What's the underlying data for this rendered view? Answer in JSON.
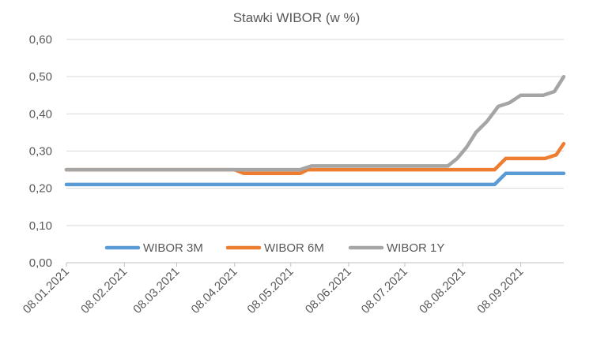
{
  "chart_data": {
    "type": "line",
    "title": "Stawki WIBOR (w %)",
    "ylim": [
      0,
      0.6
    ],
    "yticks": [
      "0,00",
      "0,10",
      "0,20",
      "0,30",
      "0,40",
      "0,50",
      "0,60"
    ],
    "ytick_values": [
      0,
      0.1,
      0.2,
      0.3,
      0.4,
      0.5,
      0.6
    ],
    "xticks": [
      "08.01.2021",
      "08.02.2021",
      "08.03.2021",
      "08.04.2021",
      "08.05.2021",
      "08.06.2021",
      "08.07.2021",
      "08.08.2021",
      "08.09.2021"
    ],
    "x_start": "2021-01-08",
    "x_end": "2021-10-01",
    "grid": true,
    "legend_position": "inside-bottom-left",
    "series": [
      {
        "name": "WIBOR 3M",
        "color": "#5B9BD5",
        "x": [
          "2021-01-08",
          "2021-08-25",
          "2021-08-31",
          "2021-10-01"
        ],
        "y": [
          0.21,
          0.21,
          0.24,
          0.24
        ]
      },
      {
        "name": "WIBOR 6M",
        "color": "#ED7D31",
        "x": [
          "2021-01-08",
          "2021-04-08",
          "2021-04-13",
          "2021-05-13",
          "2021-05-17",
          "2021-08-25",
          "2021-08-31",
          "2021-09-21",
          "2021-09-27",
          "2021-10-01"
        ],
        "y": [
          0.25,
          0.25,
          0.24,
          0.24,
          0.25,
          0.25,
          0.28,
          0.28,
          0.29,
          0.32
        ]
      },
      {
        "name": "WIBOR 1Y",
        "color": "#A5A5A5",
        "x": [
          "2021-01-08",
          "2021-05-13",
          "2021-05-19",
          "2021-07-31",
          "2021-08-05",
          "2021-08-10",
          "2021-08-15",
          "2021-08-21",
          "2021-08-27",
          "2021-09-02",
          "2021-09-08",
          "2021-09-14",
          "2021-09-20",
          "2021-09-26",
          "2021-10-01"
        ],
        "y": [
          0.25,
          0.25,
          0.26,
          0.26,
          0.28,
          0.31,
          0.35,
          0.38,
          0.42,
          0.43,
          0.45,
          0.45,
          0.45,
          0.46,
          0.5
        ]
      }
    ]
  }
}
